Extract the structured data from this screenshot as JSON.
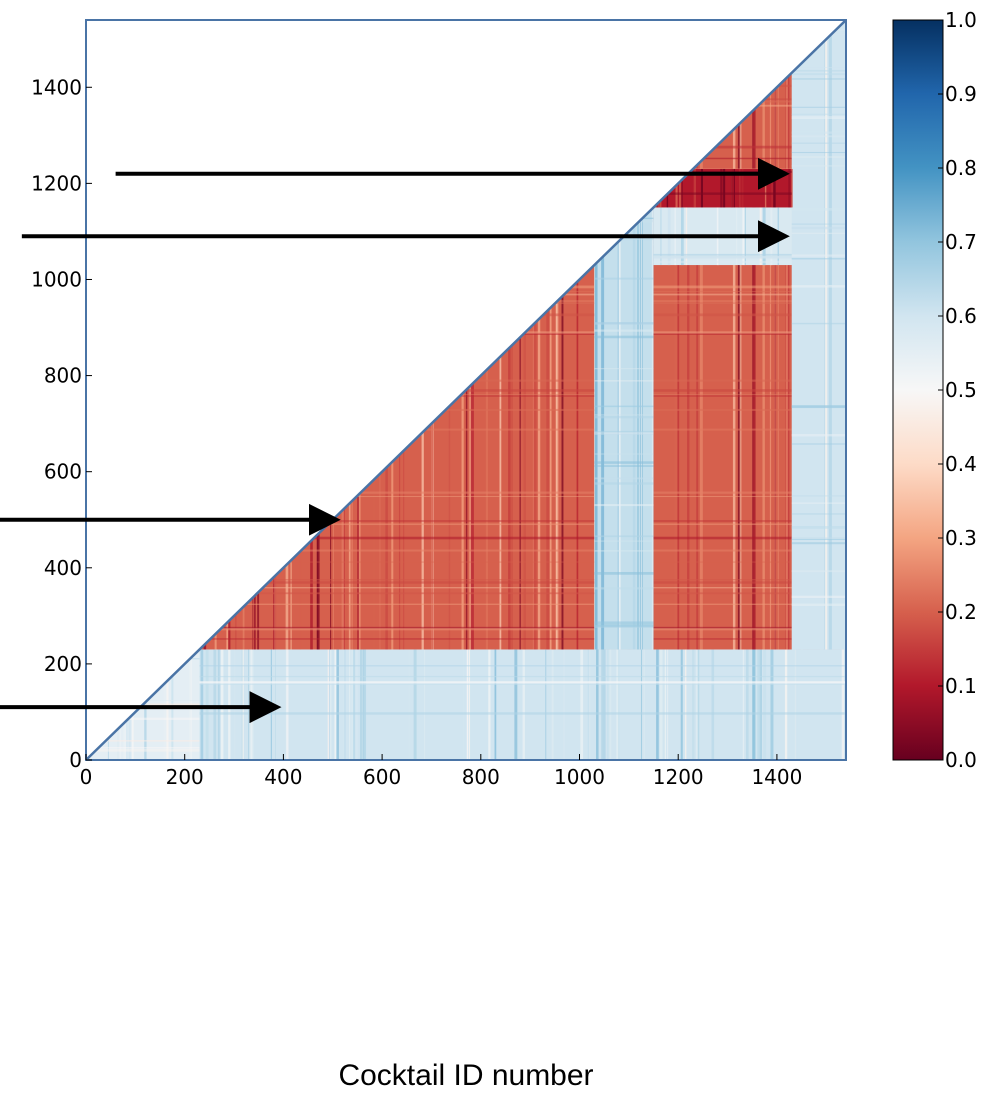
{
  "chart_data": {
    "type": "heatmap",
    "title": "",
    "xlabel": "Cocktail ID number",
    "ylabel": "",
    "xlim": [
      0,
      1540
    ],
    "ylim": [
      0,
      1540
    ],
    "x_ticks": [
      0,
      200,
      400,
      600,
      800,
      1000,
      1200,
      1400
    ],
    "y_ticks": [
      0,
      200,
      400,
      600,
      800,
      1000,
      1200,
      1400
    ],
    "x_tick_labels": [
      "0",
      "200",
      "400",
      "600",
      "800",
      "1000",
      "1200",
      "1400"
    ],
    "y_tick_labels": [
      "0",
      "200",
      "400",
      "600",
      "800",
      "1000",
      "1200",
      "1400"
    ],
    "mask": "upper-left triangle above diagonal is blank",
    "colormap": "RdBu",
    "colormap_stops": [
      "#67001f",
      "#b2182b",
      "#d6604d",
      "#f4a582",
      "#fddbc7",
      "#f7f7f7",
      "#d1e5f0",
      "#92c5de",
      "#4393c3",
      "#2166ac",
      "#053061"
    ],
    "colorbar": {
      "range": [
        0.0,
        1.0
      ],
      "ticks": [
        0.0,
        0.1,
        0.2,
        0.3,
        0.4,
        0.5,
        0.6,
        0.7,
        0.8,
        0.9,
        1.0
      ],
      "tick_labels": [
        "0.0",
        "0.1",
        "0.2",
        "0.3",
        "0.4",
        "0.5",
        "0.6",
        "0.7",
        "0.8",
        "0.9",
        "1.0"
      ]
    },
    "regions": [
      {
        "x": [
          0,
          230
        ],
        "y": [
          0,
          230
        ],
        "value": 0.55
      },
      {
        "x": [
          230,
          1540
        ],
        "y": [
          0,
          230
        ],
        "value": 0.6
      },
      {
        "x": [
          230,
          1540
        ],
        "y": [
          230,
          1540
        ],
        "value": 0.2
      },
      {
        "x": [
          1030,
          1150
        ],
        "y": [
          230,
          1540
        ],
        "value": 0.62
      },
      {
        "x": [
          1150,
          1540
        ],
        "y": [
          1030,
          1150
        ],
        "value": 0.58
      },
      {
        "x": [
          1430,
          1540
        ],
        "y": [
          230,
          1540
        ],
        "value": 0.6
      },
      {
        "x": [
          1150,
          1430
        ],
        "y": [
          1150,
          1230
        ],
        "value": 0.1
      }
    ],
    "annotations": [
      {
        "type": "arrow",
        "from": [
          60,
          1220
        ],
        "to": [
          1410,
          1220
        ]
      },
      {
        "type": "arrow",
        "from": [
          -130,
          1090
        ],
        "to": [
          1410,
          1090
        ]
      },
      {
        "type": "arrow",
        "from": [
          -180,
          500
        ],
        "to": [
          500,
          500
        ]
      },
      {
        "type": "arrow",
        "from": [
          -180,
          110
        ],
        "to": [
          380,
          110
        ]
      }
    ]
  }
}
